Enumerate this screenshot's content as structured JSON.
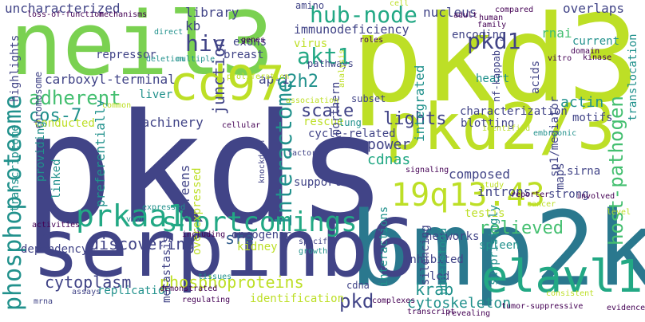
{
  "palette": {
    "dark_purple": "#440154",
    "indigo": "#414487",
    "blue": "#355f8d",
    "teal_blue": "#2a788e",
    "teal": "#21918c",
    "sea_green": "#22a884",
    "green": "#44bf70",
    "light_green": "#7ad151",
    "yellow_green": "#bddf26",
    "yellow": "#fde725"
  },
  "words": [
    {
      "text": "pkds",
      "color": "indigo",
      "vertical": false
    },
    {
      "text": "pkd3",
      "color": "yellow_green",
      "vertical": false
    },
    {
      "text": "bmp2k",
      "color": "teal_blue",
      "vertical": false
    },
    {
      "text": "neil3",
      "color": "light_green",
      "vertical": false
    },
    {
      "text": "serpinb6",
      "color": "indigo",
      "vertical": false
    },
    {
      "text": "pkd2/3",
      "color": "yellow_green",
      "vertical": false
    },
    {
      "text": "elavl1",
      "color": "sea_green",
      "vertical": false
    },
    {
      "text": "cd97",
      "color": "yellow_green",
      "vertical": false
    },
    {
      "text": "19q13.43",
      "color": "yellow_green",
      "vertical": false
    },
    {
      "text": "prkaa1",
      "color": "sea_green",
      "vertical": false
    },
    {
      "text": "shortcomings",
      "color": "sea_green",
      "vertical": false
    },
    {
      "text": "phosphoproteome",
      "color": "teal",
      "vertical": true
    },
    {
      "text": "interactome",
      "color": "teal",
      "vertical": true
    },
    {
      "text": "hub-node",
      "color": "sea_green",
      "vertical": false
    },
    {
      "text": "pkd1",
      "color": "indigo",
      "vertical": false
    },
    {
      "text": "akt1",
      "color": "sea_green",
      "vertical": false
    },
    {
      "text": "hiv",
      "color": "indigo",
      "vertical": false
    },
    {
      "text": "adherent",
      "color": "green",
      "vertical": false
    },
    {
      "text": "cos-7",
      "color": "teal",
      "vertical": false
    },
    {
      "text": "scale",
      "color": "indigo",
      "vertical": false
    },
    {
      "text": "lights",
      "color": "indigo",
      "vertical": false
    },
    {
      "text": "relieved",
      "color": "green",
      "vertical": false
    },
    {
      "text": "host-pathogen",
      "color": "green",
      "vertical": true
    },
    {
      "text": "discovering",
      "color": "indigo",
      "vertical": false
    },
    {
      "text": "sre",
      "color": "blue",
      "vertical": false
    },
    {
      "text": "phosphoproteins",
      "color": "yellow_green",
      "vertical": false
    },
    {
      "text": "cytoplasm",
      "color": "indigo",
      "vertical": false
    },
    {
      "text": "pkd",
      "color": "indigo",
      "vertical": false
    },
    {
      "text": "krab",
      "color": "teal",
      "vertical": false
    },
    {
      "text": "cytoskeleton",
      "color": "teal",
      "vertical": false
    },
    {
      "text": "uncharacterized",
      "color": "indigo",
      "vertical": false
    },
    {
      "text": "immunodeficiency",
      "color": "indigo",
      "vertical": false
    },
    {
      "text": "nucleus",
      "color": "indigo",
      "vertical": false
    },
    {
      "text": "overlaps",
      "color": "indigo",
      "vertical": false
    },
    {
      "text": "library",
      "color": "indigo",
      "vertical": false
    },
    {
      "text": "kb",
      "color": "indigo",
      "vertical": false
    },
    {
      "text": "junction",
      "color": "indigo",
      "vertical": true
    },
    {
      "text": "c2h2",
      "color": "teal",
      "vertical": false
    },
    {
      "text": "rnai",
      "color": "green",
      "vertical": false
    },
    {
      "text": "actin",
      "color": "teal",
      "vertical": false
    },
    {
      "text": "power",
      "color": "indigo",
      "vertical": false
    },
    {
      "text": "cdnas",
      "color": "sea_green",
      "vertical": false
    },
    {
      "text": "introns",
      "color": "indigo",
      "vertical": false
    },
    {
      "text": "composed",
      "color": "indigo",
      "vertical": false
    },
    {
      "text": "machinery",
      "color": "indigo",
      "vertical": false
    },
    {
      "text": "carboxyl-terminal",
      "color": "indigo",
      "vertical": false
    },
    {
      "text": "ap-1",
      "color": "indigo",
      "vertical": false
    },
    {
      "text": "repressor",
      "color": "indigo",
      "vertical": false
    },
    {
      "text": "breast",
      "color": "indigo",
      "vertical": false
    },
    {
      "text": "exons",
      "color": "indigo",
      "vertical": false
    },
    {
      "text": "virus",
      "color": "yellow_green",
      "vertical": false
    },
    {
      "text": "encoding",
      "color": "indigo",
      "vertical": false
    },
    {
      "text": "current",
      "color": "teal",
      "vertical": false
    },
    {
      "text": "heart",
      "color": "teal",
      "vertical": false
    },
    {
      "text": "characterization",
      "color": "indigo",
      "vertical": false
    },
    {
      "text": "blotting",
      "color": "indigo",
      "vertical": false
    },
    {
      "text": "motifs",
      "color": "indigo",
      "vertical": false
    },
    {
      "text": "sirna",
      "color": "indigo",
      "vertical": false
    },
    {
      "text": "strong",
      "color": "indigo",
      "vertical": false
    },
    {
      "text": "testis",
      "color": "yellow_green",
      "vertical": false
    },
    {
      "text": "spleen",
      "color": "teal",
      "vertical": false
    },
    {
      "text": "networks",
      "color": "indigo",
      "vertical": false
    },
    {
      "text": "maps",
      "color": "indigo",
      "vertical": true
    },
    {
      "text": "oncogenic",
      "color": "indigo",
      "vertical": false
    },
    {
      "text": "support",
      "color": "indigo",
      "vertical": false
    },
    {
      "text": "kidney",
      "color": "yellow_green",
      "vertical": false
    },
    {
      "text": "inhibited",
      "color": "indigo",
      "vertical": false
    },
    {
      "text": "replication",
      "color": "teal",
      "vertical": false
    },
    {
      "text": "identification",
      "color": "yellow_green",
      "vertical": false
    },
    {
      "text": "conducted",
      "color": "yellow_green",
      "vertical": false
    },
    {
      "text": "dependency",
      "color": "indigo",
      "vertical": false
    },
    {
      "text": "liver",
      "color": "teal",
      "vertical": false
    },
    {
      "text": "pathways",
      "color": "indigo",
      "vertical": false
    },
    {
      "text": "amino",
      "color": "indigo",
      "vertical": false
    },
    {
      "text": "subset",
      "color": "indigo",
      "vertical": false
    },
    {
      "text": "rescue",
      "color": "yellow_green",
      "vertical": false
    },
    {
      "text": "lung",
      "color": "teal",
      "vertical": false
    },
    {
      "text": "cycle-related",
      "color": "indigo",
      "vertical": false
    },
    {
      "text": "led",
      "color": "indigo",
      "vertical": false
    },
    {
      "text": "cdna",
      "color": "indigo",
      "vertical": false
    },
    {
      "text": "northern",
      "color": "indigo",
      "vertical": true
    },
    {
      "text": "integrated",
      "color": "teal",
      "vertical": true
    },
    {
      "text": "silencing",
      "color": "indigo",
      "vertical": true
    },
    {
      "text": "interactions",
      "color": "teal",
      "vertical": true
    },
    {
      "text": "understood",
      "color": "teal",
      "vertical": true
    },
    {
      "text": "surprisingly",
      "color": "teal",
      "vertical": true
    },
    {
      "text": "sp1/mediator",
      "color": "indigo",
      "vertical": true
    },
    {
      "text": "nf-kappab",
      "color": "indigo",
      "vertical": true
    },
    {
      "text": "acids",
      "color": "indigo",
      "vertical": true
    },
    {
      "text": "translocation",
      "color": "teal",
      "vertical": true
    },
    {
      "text": "chromosome",
      "color": "indigo",
      "vertical": true
    },
    {
      "text": "highlights",
      "color": "indigo",
      "vertical": true
    },
    {
      "text": "transcriptome",
      "color": "teal",
      "vertical": true
    },
    {
      "text": "providing",
      "color": "teal",
      "vertical": true
    },
    {
      "text": "linked",
      "color": "teal",
      "vertical": true
    },
    {
      "text": "preferentially",
      "color": "teal",
      "vertical": true
    },
    {
      "text": "screens",
      "color": "indigo",
      "vertical": true
    },
    {
      "text": "overexpressed",
      "color": "yellow_green",
      "vertical": true
    },
    {
      "text": "metastasis",
      "color": "indigo",
      "vertical": true
    },
    {
      "text": "loss-of-function",
      "color": "dark_purple",
      "vertical": false
    },
    {
      "text": "mechanisms",
      "color": "dark_purple",
      "vertical": false
    },
    {
      "text": "direct",
      "color": "teal",
      "vertical": false
    },
    {
      "text": "deletion",
      "color": "teal",
      "vertical": false
    },
    {
      "text": "multiple",
      "color": "teal",
      "vertical": false
    },
    {
      "text": "genes",
      "color": "dark_purple",
      "vertical": false
    },
    {
      "text": "roles",
      "color": "dark_purple",
      "vertical": false
    },
    {
      "text": "proliferation",
      "color": "yellow_green",
      "vertical": false
    },
    {
      "text": "association",
      "color": "yellow_green",
      "vertical": false
    },
    {
      "text": "cell",
      "color": "yellow_green",
      "vertical": false
    },
    {
      "text": "compared",
      "color": "dark_purple",
      "vertical": false
    },
    {
      "text": "adult",
      "color": "dark_purple",
      "vertical": false
    },
    {
      "text": "family",
      "color": "dark_purple",
      "vertical": false
    },
    {
      "text": "human",
      "color": "dark_purple",
      "vertical": false
    },
    {
      "text": "vitro",
      "color": "dark_purple",
      "vertical": false
    },
    {
      "text": "domain",
      "color": "dark_purple",
      "vertical": false
    },
    {
      "text": "kinase",
      "color": "dark_purple",
      "vertical": false
    },
    {
      "text": "common",
      "color": "yellow_green",
      "vertical": false
    },
    {
      "text": "cellular",
      "color": "dark_purple",
      "vertical": false
    },
    {
      "text": "identified",
      "color": "yellow_green",
      "vertical": false
    },
    {
      "text": "embryonic",
      "color": "teal",
      "vertical": false
    },
    {
      "text": "factors",
      "color": "indigo",
      "vertical": false
    },
    {
      "text": "signaling",
      "color": "dark_purple",
      "vertical": false
    },
    {
      "text": "study",
      "color": "yellow_green",
      "vertical": false
    },
    {
      "text": "reporter",
      "color": "dark_purple",
      "vertical": false
    },
    {
      "text": "involved",
      "color": "dark_purple",
      "vertical": false
    },
    {
      "text": "cancer",
      "color": "yellow_green",
      "vertical": false
    },
    {
      "text": "level",
      "color": "yellow_green",
      "vertical": false
    },
    {
      "text": "expressed",
      "color": "teal",
      "vertical": false
    },
    {
      "text": "vivo",
      "color": "teal",
      "vertical": false
    },
    {
      "text": "activities",
      "color": "dark_purple",
      "vertical": false
    },
    {
      "text": "including",
      "color": "dark_purple",
      "vertical": false
    },
    {
      "text": "growth",
      "color": "teal",
      "vertical": false
    },
    {
      "text": "tissues",
      "color": "teal",
      "vertical": false
    },
    {
      "text": "demonstrated",
      "color": "dark_purple",
      "vertical": false
    },
    {
      "text": "regulating",
      "color": "dark_purple",
      "vertical": false
    },
    {
      "text": "mrna",
      "color": "indigo",
      "vertical": false
    },
    {
      "text": "assays",
      "color": "indigo",
      "vertical": false
    },
    {
      "text": "complexes",
      "color": "dark_purple",
      "vertical": false
    },
    {
      "text": "transcript",
      "color": "dark_purple",
      "vertical": false
    },
    {
      "text": "revealing",
      "color": "dark_purple",
      "vertical": false
    },
    {
      "text": "tumor-suppressive",
      "color": "dark_purple",
      "vertical": false
    },
    {
      "text": "consistent",
      "color": "yellow_green",
      "vertical": false
    },
    {
      "text": "evidence",
      "color": "dark_purple",
      "vertical": false
    },
    {
      "text": "specific",
      "color": "indigo",
      "vertical": false
    },
    {
      "text": "knockdown",
      "color": "indigo",
      "vertical": true
    },
    {
      "text": "analysis",
      "color": "yellow_green",
      "vertical": true
    }
  ]
}
